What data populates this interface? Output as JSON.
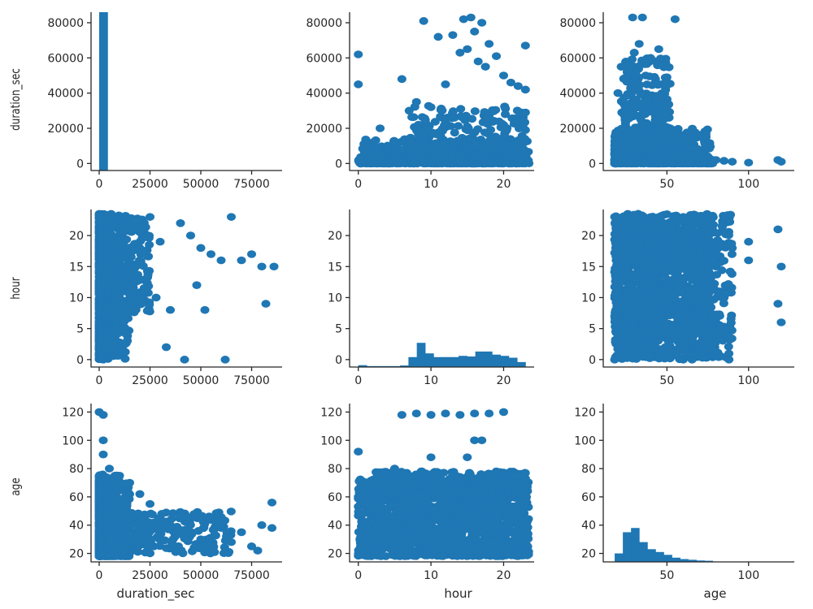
{
  "chart_data": {
    "type": "scatter",
    "layout": "pairplot",
    "variables": [
      "duration_sec",
      "hour",
      "age"
    ],
    "color": "#1f77b4",
    "axis_ranges": {
      "duration_sec": {
        "lim": [
          -4000,
          90000
        ],
        "ticks": [
          0,
          25000,
          50000,
          75000
        ],
        "ylim": [
          -4000,
          86000
        ],
        "yticks": [
          0,
          20000,
          40000,
          60000,
          80000
        ]
      },
      "hour": {
        "lim": [
          -1.2,
          24.2
        ],
        "ticks": [
          0,
          10,
          20
        ],
        "ylim": [
          -1.2,
          24.2
        ],
        "yticks": [
          0,
          5,
          10,
          15,
          20
        ]
      },
      "age": {
        "lim": [
          11,
          128
        ],
        "ticks": [
          50,
          100
        ],
        "ylim": [
          14,
          126
        ],
        "yticks": [
          20,
          40,
          60,
          80,
          100,
          120
        ]
      }
    },
    "histograms": {
      "duration_sec": {
        "bins": [
          0,
          4300
        ],
        "counts_scaled_to_axis": [
          86000
        ]
      },
      "hour": {
        "bin_edges": [
          0,
          1.15,
          2.3,
          3.45,
          4.6,
          5.75,
          6.9,
          8.05,
          9.2,
          10.35,
          11.5,
          12.65,
          13.8,
          14.95,
          16.1,
          17.25,
          18.4,
          19.55,
          20.7,
          21.85,
          23
        ],
        "heights_in_axis_units": [
          -0.9,
          -1.05,
          -1.05,
          -1.05,
          -1.05,
          -0.95,
          0.4,
          2.7,
          1.0,
          0.4,
          0.4,
          0.4,
          0.6,
          0.5,
          1.3,
          1.3,
          0.8,
          0.6,
          0.3,
          -0.4
        ]
      },
      "age": {
        "bin_edges": [
          18,
          23,
          28,
          33,
          38,
          43,
          48,
          53,
          58,
          63,
          68,
          73,
          78
        ],
        "heights_in_axis_units": [
          20,
          35,
          38,
          28,
          23,
          21,
          19,
          17,
          16,
          15.5,
          15,
          14.8
        ]
      }
    },
    "scatter_points": {
      "hour_vs_duration_sec": [
        [
          0,
          62000
        ],
        [
          0,
          45000
        ],
        [
          2,
          12000
        ],
        [
          3,
          20000
        ],
        [
          4,
          9000
        ],
        [
          6,
          48000
        ],
        [
          7,
          30000
        ],
        [
          8,
          35000
        ],
        [
          9,
          81000
        ],
        [
          10,
          32000
        ],
        [
          11,
          72000
        ],
        [
          12,
          45000
        ],
        [
          13,
          73000
        ],
        [
          14,
          63000
        ],
        [
          14.5,
          82000
        ],
        [
          15,
          65000
        ],
        [
          15.5,
          83000
        ],
        [
          16,
          75000
        ],
        [
          16.5,
          58000
        ],
        [
          17,
          80000
        ],
        [
          17.5,
          55000
        ],
        [
          18,
          68000
        ],
        [
          19,
          61000
        ],
        [
          20,
          50000
        ],
        [
          21,
          46000
        ],
        [
          22,
          44000
        ],
        [
          23,
          67000
        ],
        [
          23,
          42000
        ],
        [
          23,
          29000
        ],
        [
          23,
          19000
        ],
        [
          9,
          12000
        ],
        [
          12,
          25000
        ],
        [
          15,
          21000
        ],
        [
          18,
          27000
        ],
        [
          20,
          15000
        ]
      ],
      "age_vs_duration_sec": [
        [
          20,
          40000
        ],
        [
          22,
          55000
        ],
        [
          25,
          30000
        ],
        [
          27,
          58000
        ],
        [
          29,
          83000
        ],
        [
          30,
          63000
        ],
        [
          31,
          42000
        ],
        [
          33,
          68000
        ],
        [
          34,
          25000
        ],
        [
          35,
          83000
        ],
        [
          37,
          50000
        ],
        [
          38,
          35000
        ],
        [
          40,
          60000
        ],
        [
          42,
          45000
        ],
        [
          44,
          30000
        ],
        [
          45,
          65000
        ],
        [
          48,
          25000
        ],
        [
          50,
          45000
        ],
        [
          52,
          20000
        ],
        [
          55,
          82000
        ],
        [
          57,
          15000
        ],
        [
          60,
          12000
        ],
        [
          65,
          9000
        ],
        [
          70,
          6000
        ],
        [
          75,
          4000
        ],
        [
          80,
          2000
        ],
        [
          85,
          1500
        ],
        [
          90,
          1000
        ],
        [
          100,
          500
        ],
        [
          118,
          2000
        ],
        [
          120,
          1000
        ]
      ],
      "duration_sec_vs_hour": [
        [
          2000,
          0
        ],
        [
          5000,
          3
        ],
        [
          8000,
          6
        ],
        [
          12000,
          9
        ],
        [
          15000,
          12
        ],
        [
          18000,
          15
        ],
        [
          20000,
          18
        ],
        [
          22000,
          21
        ],
        [
          25000,
          23
        ],
        [
          30000,
          19
        ],
        [
          35000,
          8
        ],
        [
          40000,
          22
        ],
        [
          45000,
          20
        ],
        [
          50000,
          18
        ],
        [
          55000,
          17
        ],
        [
          60000,
          16
        ],
        [
          62000,
          0
        ],
        [
          65000,
          23
        ],
        [
          70000,
          16
        ],
        [
          75000,
          17
        ],
        [
          80000,
          15
        ],
        [
          82000,
          9
        ],
        [
          86000,
          15
        ],
        [
          28000,
          10
        ],
        [
          33000,
          2
        ],
        [
          42000,
          0
        ],
        [
          48000,
          12
        ],
        [
          52000,
          8
        ]
      ],
      "age_vs_hour": [
        [
          18,
          0
        ],
        [
          18,
          23
        ],
        [
          60,
          0
        ],
        [
          60,
          23
        ],
        [
          75,
          20
        ],
        [
          80,
          15
        ],
        [
          85,
          10
        ],
        [
          88,
          5
        ],
        [
          90,
          18
        ],
        [
          100,
          19
        ],
        [
          100,
          16
        ],
        [
          118,
          21
        ],
        [
          120,
          15
        ],
        [
          118,
          9
        ],
        [
          120,
          6
        ],
        [
          88,
          0
        ]
      ],
      "duration_sec_vs_age": [
        [
          0,
          120
        ],
        [
          2000,
          118
        ],
        [
          2000,
          100
        ],
        [
          2000,
          90
        ],
        [
          5000,
          80
        ],
        [
          10000,
          75
        ],
        [
          15000,
          70
        ],
        [
          20000,
          62
        ],
        [
          25000,
          55
        ],
        [
          30000,
          45
        ],
        [
          35000,
          40
        ],
        [
          40000,
          47
        ],
        [
          45000,
          35
        ],
        [
          50000,
          30
        ],
        [
          55000,
          45
        ],
        [
          60000,
          38
        ],
        [
          65000,
          28
        ],
        [
          70000,
          35
        ],
        [
          75000,
          25
        ],
        [
          80000,
          40
        ],
        [
          85000,
          56
        ],
        [
          85000,
          38
        ],
        [
          78000,
          22
        ]
      ],
      "hour_vs_age": [
        [
          0,
          92
        ],
        [
          0,
          60
        ],
        [
          3,
          72
        ],
        [
          5,
          80
        ],
        [
          6,
          118
        ],
        [
          8,
          119
        ],
        [
          10,
          118
        ],
        [
          12,
          119
        ],
        [
          14,
          118
        ],
        [
          16,
          119
        ],
        [
          18,
          119
        ],
        [
          20,
          120
        ],
        [
          10,
          88
        ],
        [
          15,
          88
        ],
        [
          16,
          100
        ],
        [
          17,
          100
        ],
        [
          19,
          78
        ],
        [
          21,
          75
        ],
        [
          23,
          73
        ],
        [
          23,
          60
        ]
      ]
    },
    "xlabels": [
      "duration_sec",
      "hour",
      "age"
    ],
    "ylabels": [
      "duration_sec",
      "hour",
      "age"
    ],
    "grid": false,
    "legend": "none"
  }
}
